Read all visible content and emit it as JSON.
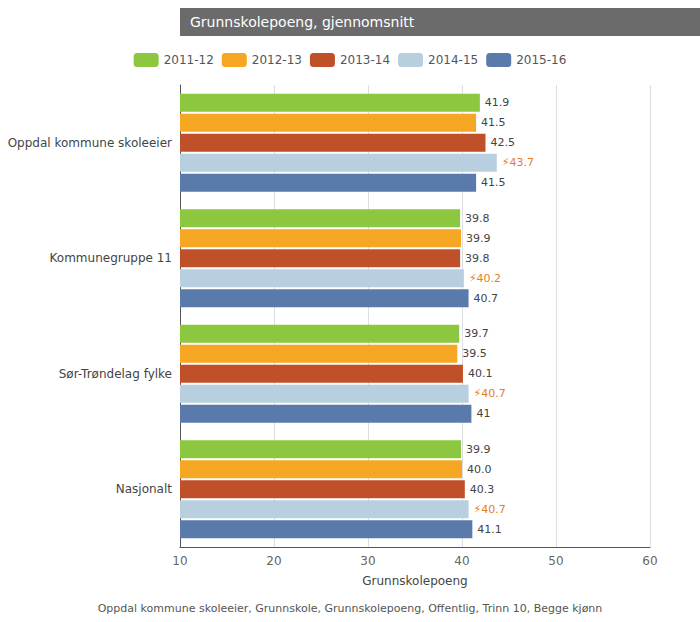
{
  "chart_data": {
    "type": "bar",
    "orientation": "horizontal",
    "title": "Grunnskolepoeng, gjennomsnitt",
    "x_label": "Grunnskolepoeng",
    "annotations": [
      "Oppdal kommune skoleeier, Grunnskole, Grunnskolepoeng, Offentlig, Trinn 10, Begge kjønn"
    ],
    "categories": [
      "Oppdal kommune skoleeier",
      "Kommunegruppe 11",
      "Sør-Trøndelag fylke",
      "Nasjonalt"
    ],
    "series": [
      {
        "name": "2011-12",
        "color": "#8dc63f",
        "values": [
          41.9,
          39.8,
          39.7,
          39.9
        ]
      },
      {
        "name": "2012-13",
        "color": "#f5a623",
        "values": [
          41.5,
          39.9,
          39.5,
          40.0
        ],
        "value_labels": [
          "41.5",
          "39.9",
          "39.5",
          "40.0"
        ]
      },
      {
        "name": "2013-14",
        "color": "#c0502a",
        "values": [
          42.5,
          39.8,
          40.1,
          40.3
        ]
      },
      {
        "name": "2014-15",
        "color": "#b8cfe0",
        "values": [
          43.7,
          40.2,
          40.7,
          40.7
        ],
        "value_labels": [
          "⚡43.7",
          "⚡40.2",
          "⚡40.7",
          "⚡40.7"
        ]
      },
      {
        "name": "2015-16",
        "color": "#5a7aab",
        "values": [
          41.5,
          40.7,
          41.0,
          41.1
        ]
      }
    ],
    "xlim": [
      10,
      60
    ],
    "xticks": [
      10,
      20,
      30,
      40,
      50,
      60
    ],
    "grid": true,
    "legend": "top",
    "data_labels": true
  }
}
